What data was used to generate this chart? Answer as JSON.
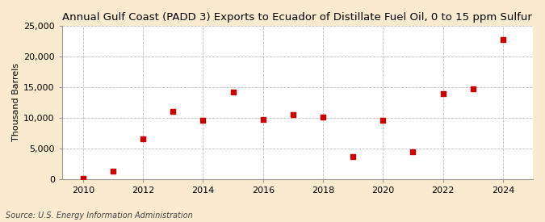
{
  "title": "Annual Gulf Coast (PADD 3) Exports to Ecuador of Distillate Fuel Oil, 0 to 15 ppm Sulfur",
  "ylabel": "Thousand Barrels",
  "source": "Source: U.S. Energy Information Administration",
  "outer_bg": "#faebd0",
  "plot_bg": "#ffffff",
  "marker_color": "#cc0000",
  "years": [
    2010,
    2011,
    2012,
    2013,
    2014,
    2015,
    2016,
    2017,
    2018,
    2019,
    2020,
    2021,
    2022,
    2023,
    2024
  ],
  "values": [
    100,
    1300,
    6500,
    11000,
    9600,
    14200,
    9700,
    10500,
    10100,
    3600,
    9600,
    4500,
    13900,
    14700,
    22700
  ],
  "ylim": [
    0,
    25000
  ],
  "yticks": [
    0,
    5000,
    10000,
    15000,
    20000,
    25000
  ],
  "ytick_labels": [
    "0",
    "5,000",
    "10,000",
    "15,000",
    "20,000",
    "25,000"
  ],
  "xticks": [
    2010,
    2012,
    2014,
    2016,
    2018,
    2020,
    2022,
    2024
  ],
  "xlim_min": 2009.3,
  "xlim_max": 2025.0,
  "title_fontsize": 9.5,
  "ylabel_fontsize": 8,
  "source_fontsize": 7,
  "tick_fontsize": 8
}
